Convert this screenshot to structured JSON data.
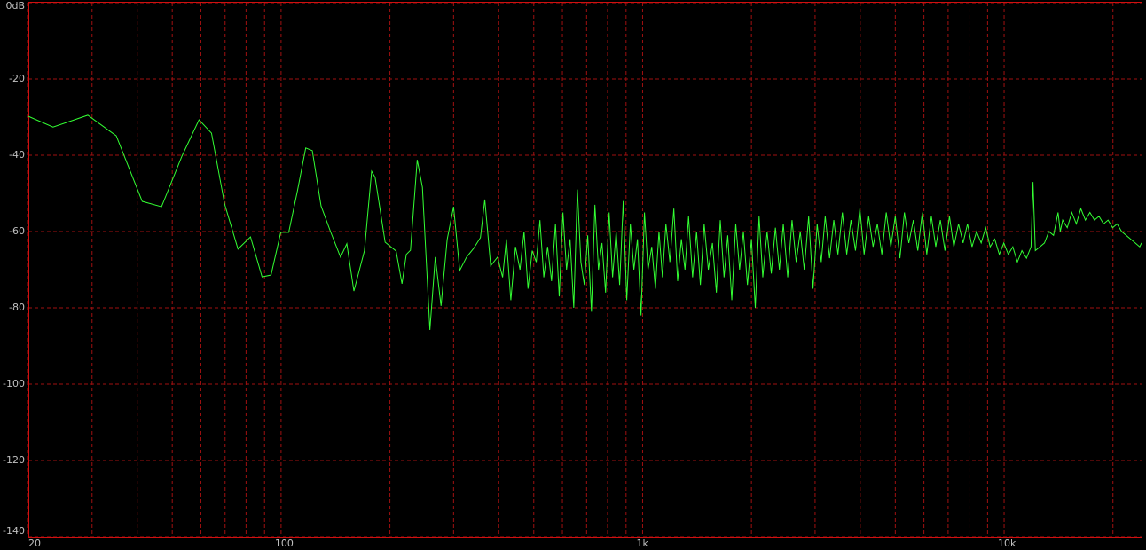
{
  "chart_data": {
    "type": "line",
    "xscale": "log",
    "xlim": [
      20,
      24000
    ],
    "ylim": [
      -140,
      0
    ],
    "xticks": [
      20,
      100,
      {
        "value": 1000,
        "label": "1k"
      },
      {
        "value": 10000,
        "label": "10k"
      }
    ],
    "x_minor_ticks": [
      30,
      40,
      50,
      60,
      70,
      80,
      90,
      200,
      300,
      400,
      500,
      600,
      700,
      800,
      900,
      2000,
      3000,
      4000,
      5000,
      6000,
      7000,
      8000,
      9000,
      20000
    ],
    "yticks": [
      {
        "value": 0,
        "label": "0dB"
      },
      -20,
      -40,
      -60,
      -80,
      -100,
      -120,
      -140
    ],
    "grid": true,
    "x": [
      20,
      23.4,
      29.2,
      35,
      41.3,
      46.7,
      53.2,
      59.3,
      64.2,
      69.8,
      76,
      82.3,
      88.6,
      93.8,
      99.8,
      105,
      111,
      117,
      122,
      129,
      137,
      146,
      152,
      159,
      170,
      178,
      182,
      194,
      208,
      216,
      222,
      228,
      238,
      246,
      258,
      267,
      277,
      288,
      300,
      312,
      326,
      341,
      356,
      366,
      380,
      397,
      410,
      420,
      432,
      445,
      458,
      470,
      482,
      495,
      508,
      520,
      533,
      546,
      560,
      574,
      588,
      602,
      616,
      630,
      645,
      660,
      675,
      690,
      705,
      722,
      738,
      755,
      772,
      790,
      808,
      826,
      845,
      864,
      884,
      904,
      925,
      946,
      968,
      990,
      1012,
      1035,
      1060,
      1085,
      1110,
      1135,
      1160,
      1190,
      1220,
      1250,
      1280,
      1310,
      1340,
      1375,
      1410,
      1445,
      1480,
      1520,
      1560,
      1600,
      1640,
      1680,
      1720,
      1765,
      1810,
      1855,
      1900,
      1950,
      2000,
      2050,
      2100,
      2150,
      2210,
      2270,
      2330,
      2390,
      2450,
      2520,
      2590,
      2660,
      2730,
      2800,
      2880,
      2960,
      3040,
      3120,
      3200,
      3290,
      3380,
      3470,
      3570,
      3670,
      3770,
      3880,
      3990,
      4100,
      4220,
      4340,
      4460,
      4590,
      4720,
      4860,
      5000,
      5150,
      5300,
      5450,
      5610,
      5770,
      5940,
      6110,
      6290,
      6470,
      6660,
      6860,
      7060,
      7260,
      7480,
      7700,
      7920,
      8150,
      8390,
      8640,
      8890,
      9150,
      9420,
      9700,
      9980,
      10270,
      10570,
      10880,
      11200,
      11530,
      11870,
      12020,
      12200,
      12560,
      12930,
      13300,
      13700,
      14100,
      14300,
      14520,
      14950,
      15390,
      15840,
      16300,
      16780,
      17270,
      17780,
      18300,
      18840,
      19390,
      19960,
      20540,
      21140,
      21760,
      22400,
      23050,
      23720,
      24000
    ],
    "series": [
      {
        "color": "#33ff33",
        "values": [
          -29.8,
          -32.6,
          -29.5,
          -34.9,
          -52.1,
          -53.5,
          -40.2,
          -30.7,
          -34.2,
          -52.8,
          -64.6,
          -61.4,
          -71.9,
          -71.4,
          -60.2,
          -60.2,
          -49.3,
          -38.1,
          -38.8,
          -53.3,
          -60,
          -66.7,
          -63.2,
          -75.6,
          -65.1,
          -44.2,
          -45.8,
          -62.8,
          -65.1,
          -73.7,
          -66,
          -64.9,
          -41.2,
          -48.4,
          -85.8,
          -66.7,
          -79.5,
          -62.1,
          -53.5,
          -70.2,
          -66.7,
          -64.4,
          -61.6,
          -51.6,
          -69,
          -66.7,
          -72,
          -62,
          -78,
          -64,
          -70,
          -60,
          -75,
          -65,
          -68,
          -57,
          -72,
          -64,
          -73,
          -58,
          -77,
          -55,
          -70,
          -62,
          -80,
          -49,
          -68,
          -74,
          -61,
          -81,
          -53,
          -70,
          -63,
          -76,
          -55,
          -72,
          -60,
          -74,
          -52,
          -78,
          -58,
          -70,
          -62,
          -82,
          -55,
          -70,
          -64,
          -75,
          -60,
          -72,
          -58,
          -68,
          -54,
          -73,
          -62,
          -70,
          -56,
          -72,
          -60,
          -74,
          -58,
          -70,
          -63,
          -76,
          -57,
          -72,
          -61,
          -78,
          -58,
          -70,
          -60,
          -74,
          -62,
          -80,
          -56,
          -72,
          -60,
          -71,
          -59,
          -70,
          -58,
          -72,
          -57,
          -68,
          -60,
          -70,
          -56,
          -75,
          -58,
          -68,
          -56,
          -67,
          -57,
          -66,
          -55,
          -66,
          -57,
          -65,
          -54,
          -66,
          -56,
          -64,
          -58,
          -66,
          -55,
          -64,
          -56,
          -67,
          -55,
          -63,
          -57,
          -65,
          -55,
          -66,
          -56,
          -64,
          -57,
          -65,
          -56,
          -64,
          -58,
          -63,
          -58,
          -64,
          -60,
          -63,
          -59,
          -64,
          -62,
          -66,
          -63,
          -66,
          -64,
          -68,
          -65,
          -67,
          -64,
          -47,
          -65,
          -64,
          -63,
          -60,
          -61,
          -55,
          -60,
          -57,
          -59,
          -55,
          -58,
          -54,
          -57,
          -55,
          -57,
          -56,
          -58,
          -57,
          -59,
          -58,
          -60,
          -61,
          -62,
          -63,
          -64,
          -63
        ]
      }
    ]
  }
}
